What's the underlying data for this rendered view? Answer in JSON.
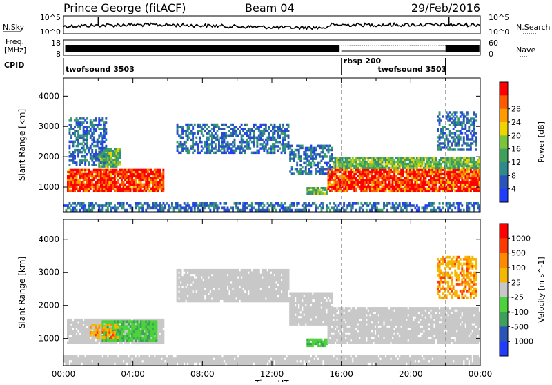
{
  "header": {
    "station": "Prince George (fitACF)",
    "beam": "Beam 04",
    "date": "29/Feb/2016"
  },
  "strip": {
    "nsky_label": "N.Sky",
    "nsearch_label": "N.Search",
    "count_top": "10^5",
    "count_bottom": "10^0",
    "freq_label": "Freq.",
    "freq_unit": "[MHz]",
    "freq_ticks": [
      "18",
      "8"
    ],
    "nave_label": "Nave",
    "nave_ticks": [
      "60",
      "0"
    ],
    "cpid_label": "CPID",
    "cpid_segments": [
      {
        "name": "twofsound 3503",
        "start": 0,
        "end": 16
      },
      {
        "name": "rbsp 200",
        "start": 16,
        "end": 22
      },
      {
        "name": "twofsound 3503",
        "start": 22,
        "end": 24
      }
    ]
  },
  "chart_data": [
    {
      "type": "heatmap",
      "name": "power",
      "xlabel": "",
      "ylabel": "Slant Range [km]",
      "xlim": [
        0,
        24
      ],
      "ylim": [
        180,
        4600
      ],
      "yticks": [
        1000,
        2000,
        3000,
        4000
      ],
      "colorbar": {
        "label": "Power [dB]",
        "ticks": [
          4,
          8,
          12,
          16,
          20,
          24,
          28
        ],
        "colors": [
          "#1f3cff",
          "#2a54b8",
          "#2f8a8a",
          "#3da15c",
          "#79c43a",
          "#f0d400",
          "#ff9a00",
          "#ff5a00",
          "#ff0000"
        ]
      },
      "bands": [
        {
          "t0": 0.2,
          "t1": 5.8,
          "r0": 850,
          "r1": 1600,
          "level": "high"
        },
        {
          "t0": 2.0,
          "t1": 3.3,
          "r0": 1650,
          "r1": 2300,
          "level": "mid"
        },
        {
          "t0": 0.3,
          "t1": 2.5,
          "r0": 1700,
          "r1": 3300,
          "level": "low"
        },
        {
          "t0": 6.5,
          "t1": 13.0,
          "r0": 2100,
          "r1": 3100,
          "level": "low"
        },
        {
          "t0": 13.0,
          "t1": 15.5,
          "r0": 1400,
          "r1": 2400,
          "level": "low"
        },
        {
          "t0": 14.0,
          "t1": 15.2,
          "r0": 750,
          "r1": 1000,
          "level": "mid"
        },
        {
          "t0": 15.2,
          "t1": 24.0,
          "r0": 850,
          "r1": 1600,
          "level": "high"
        },
        {
          "t0": 15.5,
          "t1": 24.0,
          "r0": 1600,
          "r1": 2000,
          "level": "mid"
        },
        {
          "t0": 21.5,
          "t1": 23.8,
          "r0": 2200,
          "r1": 3500,
          "level": "low"
        },
        {
          "t0": 0.0,
          "t1": 24.0,
          "r0": 200,
          "r1": 500,
          "level": "low"
        }
      ]
    },
    {
      "type": "heatmap",
      "name": "velocity",
      "xlabel": "Time UT",
      "ylabel": "Slant Range [km]",
      "xlim": [
        0,
        24
      ],
      "ylim": [
        180,
        4600
      ],
      "yticks": [
        1000,
        2000,
        3000,
        4000
      ],
      "xticks": [
        "00:00",
        "04:00",
        "08:00",
        "12:00",
        "16:00",
        "20:00",
        "00:00"
      ],
      "colorbar": {
        "label": "Velocity [m s^-1]",
        "ticks": [
          1000,
          500,
          100,
          25,
          -25,
          -100,
          -500,
          -1000
        ],
        "colors": [
          "#1f3cff",
          "#2a54b8",
          "#3da15c",
          "#4cd23a",
          "#c8c8c8",
          "#f5b800",
          "#ff8a00",
          "#ff3a00",
          "#ff0000"
        ]
      },
      "bands": [
        {
          "t0": 0.2,
          "t1": 5.8,
          "r0": 850,
          "r1": 1600,
          "level": "gray"
        },
        {
          "t0": 2.2,
          "t1": 5.4,
          "r0": 900,
          "r1": 1550,
          "level": "green"
        },
        {
          "t0": 1.5,
          "t1": 3.2,
          "r0": 1000,
          "r1": 1450,
          "level": "orange"
        },
        {
          "t0": 6.5,
          "t1": 13.0,
          "r0": 2100,
          "r1": 3100,
          "level": "gray"
        },
        {
          "t0": 13.0,
          "t1": 15.5,
          "r0": 1400,
          "r1": 2400,
          "level": "gray"
        },
        {
          "t0": 14.0,
          "t1": 15.2,
          "r0": 750,
          "r1": 1000,
          "level": "green"
        },
        {
          "t0": 15.2,
          "t1": 24.0,
          "r0": 850,
          "r1": 1950,
          "level": "gray"
        },
        {
          "t0": 21.5,
          "t1": 23.8,
          "r0": 2200,
          "r1": 3500,
          "level": "orange"
        },
        {
          "t0": 0.0,
          "t1": 24.0,
          "r0": 200,
          "r1": 500,
          "level": "gray"
        }
      ]
    }
  ]
}
